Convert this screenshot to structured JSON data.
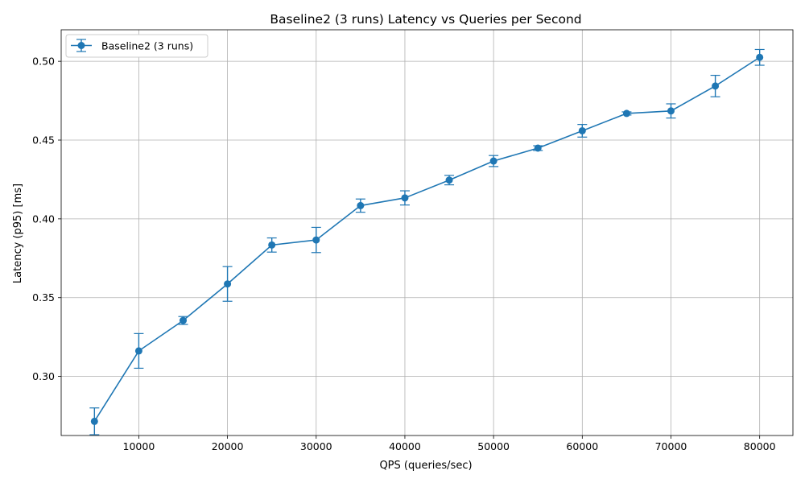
{
  "chart_data": {
    "type": "line",
    "title": "Baseline2 (3 runs) Latency vs Queries per Second",
    "xlabel": "QPS (queries/sec)",
    "ylabel": "Latency (p95) [ms]",
    "xlim": [
      1250,
      83750
    ],
    "ylim": [
      0.2625,
      0.52
    ],
    "x_ticks": [
      10000,
      20000,
      30000,
      40000,
      50000,
      60000,
      70000,
      80000
    ],
    "y_ticks": [
      0.3,
      0.35,
      0.4,
      0.45,
      0.5
    ],
    "x_tick_labels": [
      "10000",
      "20000",
      "30000",
      "40000",
      "50000",
      "60000",
      "70000",
      "80000"
    ],
    "y_tick_labels": [
      "0.30",
      "0.35",
      "0.40",
      "0.45",
      "0.50"
    ],
    "grid": true,
    "legend_position": "top-left",
    "series": [
      {
        "name": "Baseline2 (3 runs)",
        "color": "#1f77b4",
        "marker": "circle",
        "error_bars": true,
        "x": [
          5000,
          10000,
          15000,
          20000,
          25000,
          30000,
          35000,
          40000,
          45000,
          50000,
          55000,
          60000,
          65000,
          70000,
          75000,
          80000
        ],
        "y": [
          0.2715,
          0.3162,
          0.3355,
          0.3587,
          0.3834,
          0.3866,
          0.4084,
          0.4133,
          0.4246,
          0.4367,
          0.4449,
          0.4559,
          0.4669,
          0.4685,
          0.4843,
          0.5025
        ],
        "err": [
          0.0085,
          0.011,
          0.0025,
          0.011,
          0.0045,
          0.008,
          0.0042,
          0.0045,
          0.003,
          0.0035,
          0.0015,
          0.004,
          0.001,
          0.0045,
          0.0068,
          0.005
        ]
      }
    ]
  }
}
